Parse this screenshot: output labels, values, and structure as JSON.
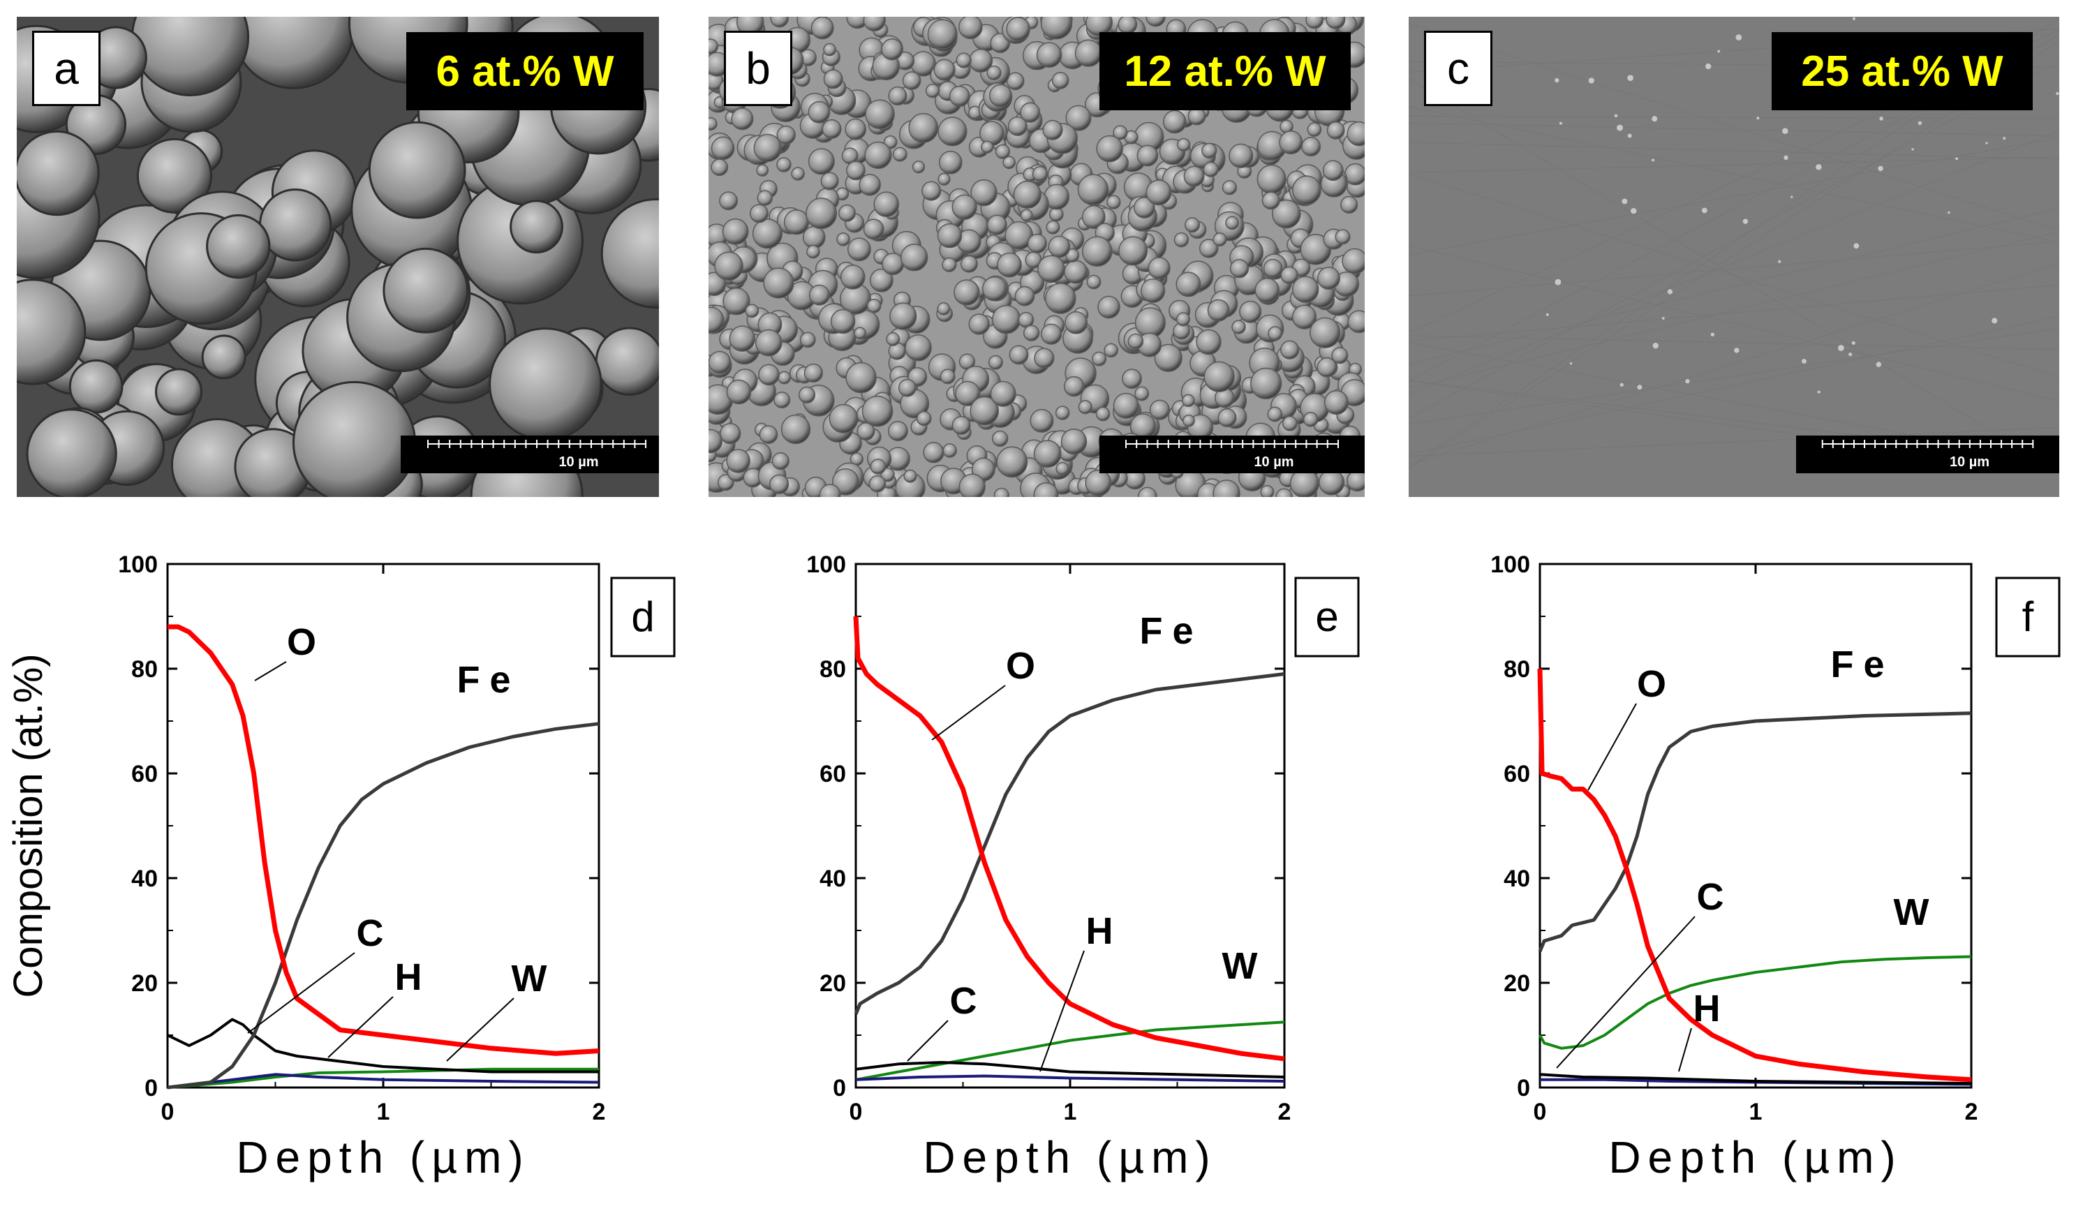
{
  "sem_panels": [
    {
      "letter": "a",
      "label": "6 at.% W",
      "scale": "10 µm",
      "texture": "coarse"
    },
    {
      "letter": "b",
      "label": "12 at.% W",
      "scale": "10 µm",
      "texture": "fine"
    },
    {
      "letter": "c",
      "label": "25 at.% W",
      "scale": "10 µm",
      "texture": "smooth"
    }
  ],
  "colors": {
    "O": "#ff0000",
    "Fe": "#3a3a3a",
    "C": "#000000",
    "H": "#1a1a7a",
    "W": "#118811"
  },
  "chart_data": [
    {
      "type": "line",
      "panel": "d",
      "xlabel": "Depth (µm)",
      "ylabel": "Composition (at.%)",
      "xlim": [
        0,
        2
      ],
      "ylim": [
        0,
        100
      ],
      "xticks": [
        0,
        1,
        2
      ],
      "yticks": [
        0,
        20,
        40,
        60,
        80,
        100
      ],
      "series": [
        {
          "name": "O",
          "points": [
            [
              0,
              88
            ],
            [
              0.05,
              88
            ],
            [
              0.1,
              87
            ],
            [
              0.2,
              83
            ],
            [
              0.3,
              77
            ],
            [
              0.35,
              71
            ],
            [
              0.4,
              60
            ],
            [
              0.45,
              43
            ],
            [
              0.5,
              30
            ],
            [
              0.55,
              22
            ],
            [
              0.6,
              17
            ],
            [
              0.7,
              14
            ],
            [
              0.8,
              11
            ],
            [
              1.0,
              10
            ],
            [
              1.2,
              9
            ],
            [
              1.5,
              7.5
            ],
            [
              1.8,
              6.5
            ],
            [
              2.0,
              7
            ]
          ]
        },
        {
          "name": "Fe",
          "points": [
            [
              0,
              0
            ],
            [
              0.2,
              1
            ],
            [
              0.3,
              4
            ],
            [
              0.4,
              10
            ],
            [
              0.5,
              20
            ],
            [
              0.6,
              32
            ],
            [
              0.7,
              42
            ],
            [
              0.8,
              50
            ],
            [
              0.9,
              55
            ],
            [
              1.0,
              58
            ],
            [
              1.2,
              62
            ],
            [
              1.4,
              65
            ],
            [
              1.6,
              67
            ],
            [
              1.8,
              68.5
            ],
            [
              2.0,
              69.5
            ]
          ]
        },
        {
          "name": "C",
          "points": [
            [
              0,
              10
            ],
            [
              0.05,
              9
            ],
            [
              0.1,
              8
            ],
            [
              0.2,
              10
            ],
            [
              0.3,
              13
            ],
            [
              0.35,
              12
            ],
            [
              0.4,
              10
            ],
            [
              0.5,
              7
            ],
            [
              0.6,
              6
            ],
            [
              0.8,
              5
            ],
            [
              1.0,
              4
            ],
            [
              1.5,
              3
            ],
            [
              2.0,
              3
            ]
          ]
        },
        {
          "name": "H",
          "points": [
            [
              0,
              0
            ],
            [
              0.3,
              1.5
            ],
            [
              0.5,
              2.5
            ],
            [
              0.7,
              2
            ],
            [
              1.0,
              1.5
            ],
            [
              1.5,
              1.2
            ],
            [
              2.0,
              1
            ]
          ]
        },
        {
          "name": "W",
          "points": [
            [
              0,
              0
            ],
            [
              0.3,
              1
            ],
            [
              0.5,
              2
            ],
            [
              0.7,
              2.8
            ],
            [
              1.0,
              3
            ],
            [
              1.5,
              3.5
            ],
            [
              2.0,
              3.5
            ]
          ]
        }
      ],
      "annotations": [
        "O",
        "Fe",
        "C",
        "H",
        "W"
      ]
    },
    {
      "type": "line",
      "panel": "e",
      "xlabel": "Depth (µm)",
      "ylabel": "",
      "xlim": [
        0,
        2
      ],
      "ylim": [
        0,
        100
      ],
      "xticks": [
        0,
        1,
        2
      ],
      "yticks": [
        0,
        20,
        40,
        60,
        80,
        100
      ],
      "series": [
        {
          "name": "O",
          "points": [
            [
              0,
              90
            ],
            [
              0.01,
              82
            ],
            [
              0.05,
              79
            ],
            [
              0.1,
              77
            ],
            [
              0.2,
              74
            ],
            [
              0.3,
              71
            ],
            [
              0.4,
              66
            ],
            [
              0.5,
              57
            ],
            [
              0.6,
              43
            ],
            [
              0.7,
              32
            ],
            [
              0.8,
              25
            ],
            [
              0.9,
              20
            ],
            [
              1.0,
              16
            ],
            [
              1.2,
              12
            ],
            [
              1.4,
              9.5
            ],
            [
              1.6,
              8
            ],
            [
              1.8,
              6.5
            ],
            [
              2.0,
              5.5
            ]
          ]
        },
        {
          "name": "Fe",
          "points": [
            [
              0,
              14
            ],
            [
              0.02,
              16
            ],
            [
              0.1,
              18
            ],
            [
              0.2,
              20
            ],
            [
              0.3,
              23
            ],
            [
              0.4,
              28
            ],
            [
              0.5,
              36
            ],
            [
              0.6,
              46
            ],
            [
              0.7,
              56
            ],
            [
              0.8,
              63
            ],
            [
              0.9,
              68
            ],
            [
              1.0,
              71
            ],
            [
              1.2,
              74
            ],
            [
              1.4,
              76
            ],
            [
              1.6,
              77
            ],
            [
              1.8,
              78
            ],
            [
              2.0,
              79
            ]
          ]
        },
        {
          "name": "C",
          "points": [
            [
              0,
              3.5
            ],
            [
              0.2,
              4.5
            ],
            [
              0.4,
              4.8
            ],
            [
              0.6,
              4.5
            ],
            [
              0.8,
              3.8
            ],
            [
              1.0,
              3
            ],
            [
              1.5,
              2.5
            ],
            [
              2.0,
              2
            ]
          ]
        },
        {
          "name": "H",
          "points": [
            [
              0,
              1.5
            ],
            [
              0.3,
              2
            ],
            [
              0.6,
              2.2
            ],
            [
              1.0,
              1.8
            ],
            [
              1.5,
              1.5
            ],
            [
              2.0,
              1.2
            ]
          ]
        },
        {
          "name": "W",
          "points": [
            [
              0,
              1.5
            ],
            [
              0.2,
              3
            ],
            [
              0.4,
              4.5
            ],
            [
              0.6,
              6
            ],
            [
              0.8,
              7.5
            ],
            [
              1.0,
              9
            ],
            [
              1.2,
              10
            ],
            [
              1.4,
              11
            ],
            [
              1.6,
              11.5
            ],
            [
              1.8,
              12
            ],
            [
              2.0,
              12.5
            ]
          ]
        }
      ],
      "annotations": [
        "O",
        "Fe",
        "C",
        "H",
        "W"
      ]
    },
    {
      "type": "line",
      "panel": "f",
      "xlabel": "Depth (µm)",
      "ylabel": "",
      "xlim": [
        0,
        2
      ],
      "ylim": [
        0,
        100
      ],
      "xticks": [
        0,
        1,
        2
      ],
      "yticks": [
        0,
        20,
        40,
        60,
        80,
        100
      ],
      "series": [
        {
          "name": "O",
          "points": [
            [
              0,
              80
            ],
            [
              0.01,
              60
            ],
            [
              0.05,
              59.5
            ],
            [
              0.1,
              59
            ],
            [
              0.15,
              57
            ],
            [
              0.2,
              57
            ],
            [
              0.25,
              55
            ],
            [
              0.3,
              52
            ],
            [
              0.35,
              48
            ],
            [
              0.4,
              42
            ],
            [
              0.45,
              35
            ],
            [
              0.5,
              27
            ],
            [
              0.55,
              22
            ],
            [
              0.6,
              17
            ],
            [
              0.7,
              13
            ],
            [
              0.8,
              10
            ],
            [
              1.0,
              6
            ],
            [
              1.2,
              4.5
            ],
            [
              1.5,
              3
            ],
            [
              1.8,
              2
            ],
            [
              2.0,
              1.5
            ]
          ]
        },
        {
          "name": "Fe",
          "points": [
            [
              0,
              26
            ],
            [
              0.02,
              28
            ],
            [
              0.1,
              29
            ],
            [
              0.15,
              31
            ],
            [
              0.2,
              31.5
            ],
            [
              0.25,
              32
            ],
            [
              0.3,
              35
            ],
            [
              0.35,
              38
            ],
            [
              0.4,
              42
            ],
            [
              0.45,
              48
            ],
            [
              0.5,
              56
            ],
            [
              0.55,
              61
            ],
            [
              0.6,
              65
            ],
            [
              0.7,
              68
            ],
            [
              0.8,
              69
            ],
            [
              1.0,
              70
            ],
            [
              1.5,
              71
            ],
            [
              2.0,
              71.5
            ]
          ]
        },
        {
          "name": "C",
          "points": [
            [
              0,
              2.5
            ],
            [
              0.2,
              2
            ],
            [
              0.5,
              1.8
            ],
            [
              1.0,
              1.2
            ],
            [
              1.5,
              1
            ],
            [
              2.0,
              0.8
            ]
          ]
        },
        {
          "name": "H",
          "points": [
            [
              0,
              1.5
            ],
            [
              0.3,
              1.5
            ],
            [
              0.6,
              1.2
            ],
            [
              1.0,
              1
            ],
            [
              1.5,
              0.8
            ],
            [
              2.0,
              0.6
            ]
          ]
        },
        {
          "name": "W",
          "points": [
            [
              0,
              10
            ],
            [
              0.02,
              8.5
            ],
            [
              0.1,
              7.5
            ],
            [
              0.2,
              8
            ],
            [
              0.3,
              10
            ],
            [
              0.4,
              13
            ],
            [
              0.5,
              16
            ],
            [
              0.6,
              18
            ],
            [
              0.7,
              19.5
            ],
            [
              0.8,
              20.5
            ],
            [
              1.0,
              22
            ],
            [
              1.2,
              23
            ],
            [
              1.4,
              24
            ],
            [
              1.6,
              24.5
            ],
            [
              1.8,
              24.8
            ],
            [
              2.0,
              25
            ]
          ]
        }
      ],
      "annotations": [
        "O",
        "Fe",
        "C",
        "H",
        "W"
      ]
    }
  ]
}
